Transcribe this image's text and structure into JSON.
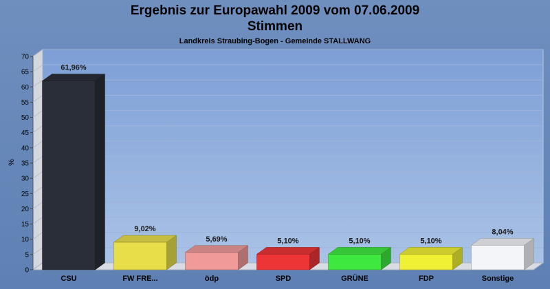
{
  "title_line1": "Ergebnis zur Europawahl 2009 vom 07.06.2009",
  "title_line2": "Stimmen",
  "subtitle": "Landkreis Straubing-Bogen - Gemeinde STALLWANG",
  "chart_data": {
    "type": "bar",
    "title": "Ergebnis zur Europawahl 2009 vom 07.06.2009 Stimmen",
    "subtitle": "Landkreis Straubing-Bogen - Gemeinde STALLWANG",
    "xlabel": "",
    "ylabel": "%",
    "ylim": [
      0,
      70
    ],
    "yticks": [
      0,
      5,
      10,
      15,
      20,
      25,
      30,
      35,
      40,
      45,
      50,
      55,
      60,
      65,
      70
    ],
    "grid": true,
    "legend": "none",
    "categories": [
      "CSU",
      "FW FRE...",
      "ödp",
      "SPD",
      "GRÜNE",
      "FDP",
      "Sonstige"
    ],
    "values": [
      61.96,
      9.02,
      5.69,
      5.1,
      5.1,
      5.1,
      8.04
    ],
    "value_labels": [
      "61,96%",
      "9,02%",
      "5,69%",
      "5,10%",
      "5,10%",
      "5,10%",
      "8,04%"
    ],
    "colors": [
      "#2a2e38",
      "#e8de4a",
      "#f09a9a",
      "#ee3535",
      "#3fe83f",
      "#f0f035",
      "#f3f5f8"
    ]
  }
}
